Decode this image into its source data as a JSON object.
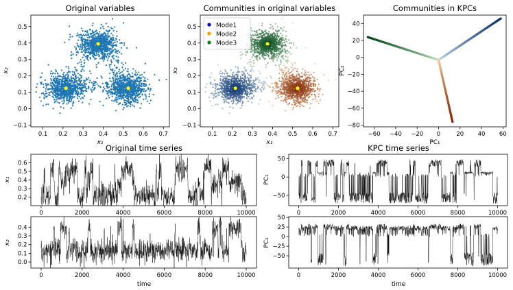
{
  "colors": {
    "blue": "#1f77b4",
    "yellow": "#ffff00",
    "mode1": "#0000cc",
    "mode2": "#ff9900",
    "mode3": "#008800",
    "blue_dark": "#08306b",
    "blue_light": "#c6dbef",
    "orange_dark": "#7f2704",
    "orange_light": "#fdd0a2",
    "green_dark": "#00441b",
    "green_light": "#c7e9c0",
    "line": "#000000"
  },
  "chart_data": [
    {
      "id": "p1",
      "type": "scatter",
      "title": "Original variables",
      "xlabel": "x₁",
      "ylabel": "x₂",
      "xlim": [
        0.04,
        0.73
      ],
      "ylim": [
        -0.11,
        0.57
      ],
      "xticks": [
        0.1,
        0.2,
        0.3,
        0.4,
        0.5,
        0.6,
        0.7
      ],
      "xticklabels": [
        "0.1",
        "0.2",
        "0.3",
        "0.4",
        "0.5",
        "0.6",
        "0.7"
      ],
      "yticks": [
        -0.1,
        0.0,
        0.1,
        0.2,
        0.3,
        0.4,
        0.5
      ],
      "yticklabels": [
        "−0.1",
        "0.0",
        "0.1",
        "0.2",
        "0.3",
        "0.4",
        "0.5"
      ],
      "clusters": [
        {
          "center": [
            0.21,
            0.125
          ],
          "spread": [
            0.07,
            0.06
          ]
        },
        {
          "center": [
            0.525,
            0.125
          ],
          "spread": [
            0.07,
            0.06
          ]
        },
        {
          "center": [
            0.375,
            0.395
          ],
          "spread": [
            0.07,
            0.06
          ]
        }
      ],
      "centroids": [
        [
          0.215,
          0.125
        ],
        [
          0.525,
          0.125
        ],
        [
          0.375,
          0.395
        ]
      ]
    },
    {
      "id": "p2",
      "type": "scatter",
      "title": "Communities in original variables",
      "xlabel": "x₁",
      "ylabel": "x₂",
      "xlim": [
        0.04,
        0.73
      ],
      "ylim": [
        -0.11,
        0.57
      ],
      "xticks": [
        0.1,
        0.2,
        0.3,
        0.4,
        0.5,
        0.6,
        0.7
      ],
      "xticklabels": [
        "0.1",
        "0.2",
        "0.3",
        "0.4",
        "0.5",
        "0.6",
        "0.7"
      ],
      "yticks": [
        -0.1,
        0.0,
        0.1,
        0.2,
        0.3,
        0.4,
        0.5
      ],
      "yticklabels": [
        "−0.1",
        "0.0",
        "0.1",
        "0.2",
        "0.3",
        "0.4",
        "0.5"
      ],
      "legend": [
        "Mode1",
        "Mode2",
        "Mode3"
      ],
      "legend_location": "top-left",
      "centroids": [
        [
          0.215,
          0.125
        ],
        [
          0.525,
          0.125
        ],
        [
          0.375,
          0.395
        ]
      ]
    },
    {
      "id": "p3",
      "type": "line",
      "title": "Communities in KPCs",
      "xlabel": "PC₁",
      "ylabel": "PC₂",
      "xlim": [
        -70,
        63
      ],
      "ylim": [
        -82,
        50
      ],
      "xticks": [
        -60,
        -40,
        -20,
        0,
        20,
        40,
        60
      ],
      "xticklabels": [
        "−60",
        "−40",
        "−20",
        "0",
        "20",
        "40",
        "60"
      ],
      "yticks": [
        -80,
        -60,
        -40,
        -20,
        0,
        20,
        40
      ],
      "yticklabels": [
        "−80",
        "−60",
        "−40",
        "−20",
        "0",
        "20",
        "40"
      ],
      "origin": [
        0,
        -3
      ],
      "arms": [
        {
          "mode": "Mode3",
          "end": [
            -66,
            24
          ]
        },
        {
          "mode": "Mode1",
          "end": [
            58,
            46
          ]
        },
        {
          "mode": "Mode2",
          "end": [
            13,
            -76
          ]
        }
      ]
    },
    {
      "id": "p4",
      "type": "line",
      "title": "Original time series",
      "xlabel": "",
      "ylabel": "x₁",
      "xlim": [
        -500,
        10500
      ],
      "ylim": [
        0.1,
        0.7
      ],
      "xticks": [
        0,
        2000,
        4000,
        6000,
        8000,
        10000
      ],
      "xticklabels": [
        "0",
        "2000",
        "4000",
        "6000",
        "8000",
        "10000"
      ],
      "yticks": [
        0.2,
        0.3,
        0.4,
        0.5,
        0.6
      ],
      "yticklabels": [
        "0.2",
        "0.3",
        "0.4",
        "0.5",
        "0.6"
      ],
      "series": "x1"
    },
    {
      "id": "p5",
      "type": "line",
      "title": "",
      "xlabel": "time",
      "ylabel": "x₂",
      "xlim": [
        -500,
        10500
      ],
      "ylim": [
        -0.07,
        0.52
      ],
      "xticks": [
        0,
        2000,
        4000,
        6000,
        8000,
        10000
      ],
      "xticklabels": [
        "0",
        "2000",
        "4000",
        "6000",
        "8000",
        "10000"
      ],
      "yticks": [
        0.0,
        0.1,
        0.2,
        0.3,
        0.4
      ],
      "yticklabels": [
        "0.0",
        "0.1",
        "0.2",
        "0.3",
        "0.4"
      ],
      "series": "x2"
    },
    {
      "id": "p6",
      "type": "line",
      "title": "KPC time series",
      "xlabel": "",
      "ylabel": "PC₁",
      "xlim": [
        -500,
        10500
      ],
      "ylim": [
        -78,
        62
      ],
      "xticks": [
        0,
        2000,
        4000,
        6000,
        8000,
        10000
      ],
      "xticklabels": [
        "0",
        "2000",
        "4000",
        "6000",
        "8000",
        "10000"
      ],
      "yticks": [
        -50,
        0,
        50
      ],
      "yticklabels": [
        "−50",
        "0",
        "50"
      ],
      "series": "pc1"
    },
    {
      "id": "p7",
      "type": "line",
      "title": "",
      "xlabel": "time",
      "ylabel": "PC₂",
      "xlim": [
        -500,
        10500
      ],
      "ylim": [
        -82,
        52
      ],
      "xticks": [
        0,
        2000,
        4000,
        6000,
        8000,
        10000
      ],
      "xticklabels": [
        "0",
        "2000",
        "4000",
        "6000",
        "8000",
        "10000"
      ],
      "yticks": [
        -50,
        -25,
        0,
        25,
        50
      ],
      "yticklabels": [
        "−50",
        "−25",
        "0",
        "25",
        "50"
      ],
      "series": "pc2"
    }
  ]
}
